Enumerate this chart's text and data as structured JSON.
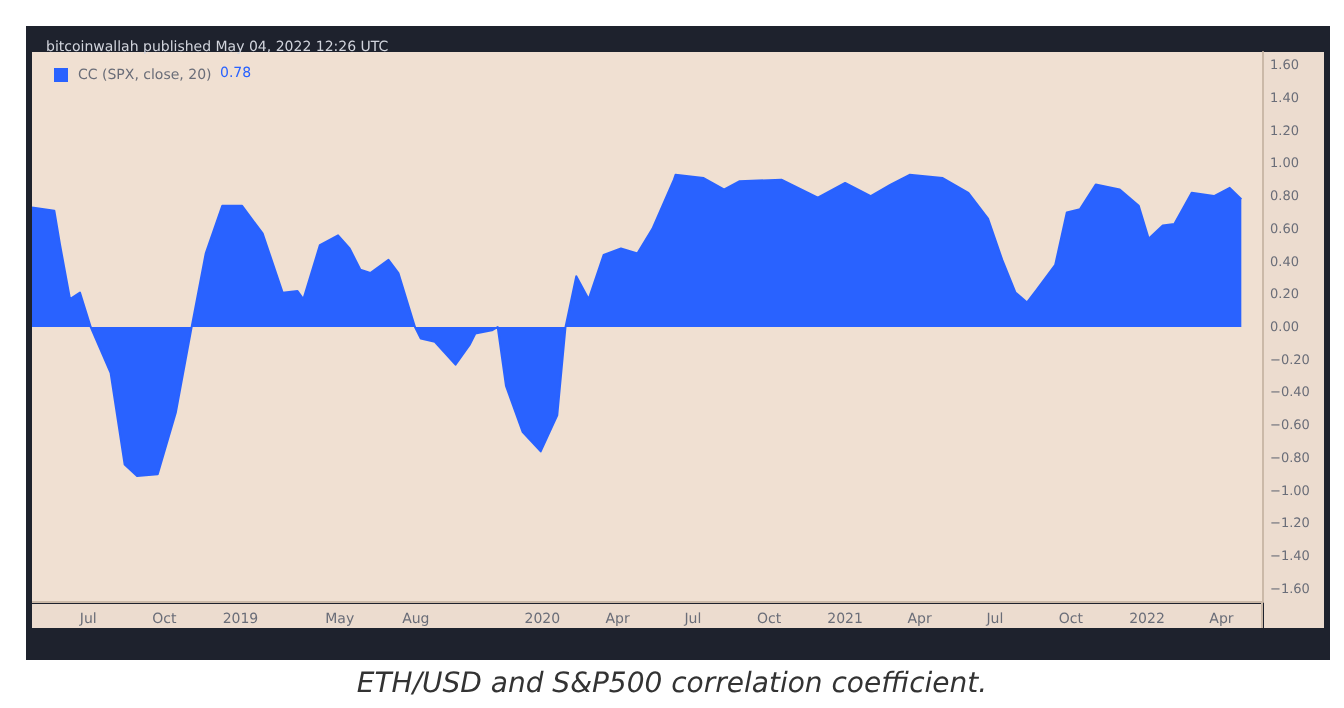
{
  "chart_data": {
    "type": "area",
    "title": "bitcoinwallah published May 04, 2022 12:26 UTC",
    "annotations": [
      "0.78",
      "ETH/USD and S&P500 correlation coefficient."
    ],
    "x": [
      "2018-04-24",
      "2018-05-21",
      "2018-05-28",
      "2018-06-09",
      "2018-06-21",
      "2018-07-04",
      "2018-07-28",
      "2018-08-14",
      "2018-08-29",
      "2018-09-23",
      "2018-10-15",
      "2018-11-03",
      "2018-11-20",
      "2018-12-10",
      "2019-01-03",
      "2019-01-28",
      "2019-02-21",
      "2019-03-11",
      "2019-03-18",
      "2019-04-07",
      "2019-04-29",
      "2019-05-13",
      "2019-05-26",
      "2019-06-07",
      "2019-06-29",
      "2019-07-11",
      "2019-07-31",
      "2019-08-07",
      "2019-08-24",
      "2019-09-18",
      "2019-10-05",
      "2019-10-12",
      "2019-11-01",
      "2019-11-08",
      "2019-11-18",
      "2019-12-08",
      "2019-12-30",
      "2020-01-19",
      "2020-01-29",
      "2020-02-11",
      "2020-02-26",
      "2020-03-15",
      "2020-04-05",
      "2020-04-25",
      "2020-05-13",
      "2020-06-08",
      "2020-06-10",
      "2020-07-14",
      "2020-08-08",
      "2020-08-26",
      "2020-10-16",
      "2020-11-29",
      "2021-01-01",
      "2021-02-01",
      "2021-02-25",
      "2021-03-20",
      "2021-04-29",
      "2021-05-30",
      "2021-06-23",
      "2021-07-10",
      "2021-07-26",
      "2021-08-09",
      "2021-08-21",
      "2021-09-12",
      "2021-09-26",
      "2021-10-12",
      "2021-10-31",
      "2021-11-29",
      "2021-12-22",
      "2022-01-03",
      "2022-01-20",
      "2022-02-03",
      "2022-02-24",
      "2022-03-23",
      "2022-04-11",
      "2022-04-25"
    ],
    "series": [
      {
        "name": "CC (SPX, close, 20)",
        "color": "#2962ff",
        "values": [
          0.73,
          0.71,
          0.5,
          0.17,
          0.21,
          0,
          -0.28,
          -0.84,
          -0.91,
          -0.9,
          -0.52,
          0,
          0.45,
          0.74,
          0.74,
          0.57,
          0.21,
          0.22,
          0.17,
          0.5,
          0.56,
          0.48,
          0.35,
          0.33,
          0.41,
          0.33,
          0,
          -0.07,
          -0.09,
          -0.23,
          -0.11,
          -0.04,
          -0.02,
          0,
          -0.36,
          -0.64,
          -0.76,
          -0.54,
          0,
          0.31,
          0.17,
          0.44,
          0.48,
          0.45,
          0.6,
          0.9,
          0.93,
          0.91,
          0.84,
          0.89,
          0.9,
          0.79,
          0.88,
          0.8,
          0.87,
          0.93,
          0.91,
          0.82,
          0.66,
          0.41,
          0.21,
          0.15,
          0.23,
          0.38,
          0.7,
          0.72,
          0.87,
          0.84,
          0.74,
          0.54,
          0.62,
          0.63,
          0.82,
          0.8,
          0.85,
          0.78
        ]
      }
    ],
    "xlim": [
      "2018-04-24",
      "2022-05-20"
    ],
    "xticks": [
      {
        "value": "2018-07-01",
        "label": "Jul"
      },
      {
        "value": "2018-10-01",
        "label": "Oct"
      },
      {
        "value": "2019-01-01",
        "label": "2019"
      },
      {
        "value": "2019-05-01",
        "label": "May"
      },
      {
        "value": "2019-08-01",
        "label": "Aug"
      },
      {
        "value": "2020-01-01",
        "label": "2020"
      },
      {
        "value": "2020-04-01",
        "label": "Apr"
      },
      {
        "value": "2020-07-01",
        "label": "Jul"
      },
      {
        "value": "2020-10-01",
        "label": "Oct"
      },
      {
        "value": "2021-01-01",
        "label": "2021"
      },
      {
        "value": "2021-04-01",
        "label": "Apr"
      },
      {
        "value": "2021-07-01",
        "label": "Jul"
      },
      {
        "value": "2021-10-01",
        "label": "Oct"
      },
      {
        "value": "2022-01-01",
        "label": "2022"
      },
      {
        "value": "2022-04-01",
        "label": "Apr"
      }
    ],
    "ylim": [
      -1.68,
      1.68
    ],
    "yticks": [
      {
        "value": 1.6,
        "label": "1.60"
      },
      {
        "value": 1.4,
        "label": "1.40"
      },
      {
        "value": 1.2,
        "label": "1.20"
      },
      {
        "value": 1,
        "label": "1.00"
      },
      {
        "value": 0.8,
        "label": "0.80"
      },
      {
        "value": 0.6,
        "label": "0.60"
      },
      {
        "value": 0.4,
        "label": "0.40"
      },
      {
        "value": 0.2,
        "label": "0.20"
      },
      {
        "value": 0,
        "label": "0.00"
      },
      {
        "value": -0.2,
        "label": "−0.20"
      },
      {
        "value": -0.4,
        "label": "−0.40"
      },
      {
        "value": -0.6,
        "label": "−0.60"
      },
      {
        "value": -0.8,
        "label": "−0.80"
      },
      {
        "value": -1,
        "label": "−1.00"
      },
      {
        "value": -1.2,
        "label": "−1.20"
      },
      {
        "value": -1.4,
        "label": "−1.40"
      },
      {
        "value": -1.6,
        "label": "−1.60"
      }
    ],
    "legend": "top left",
    "marker": "none"
  }
}
